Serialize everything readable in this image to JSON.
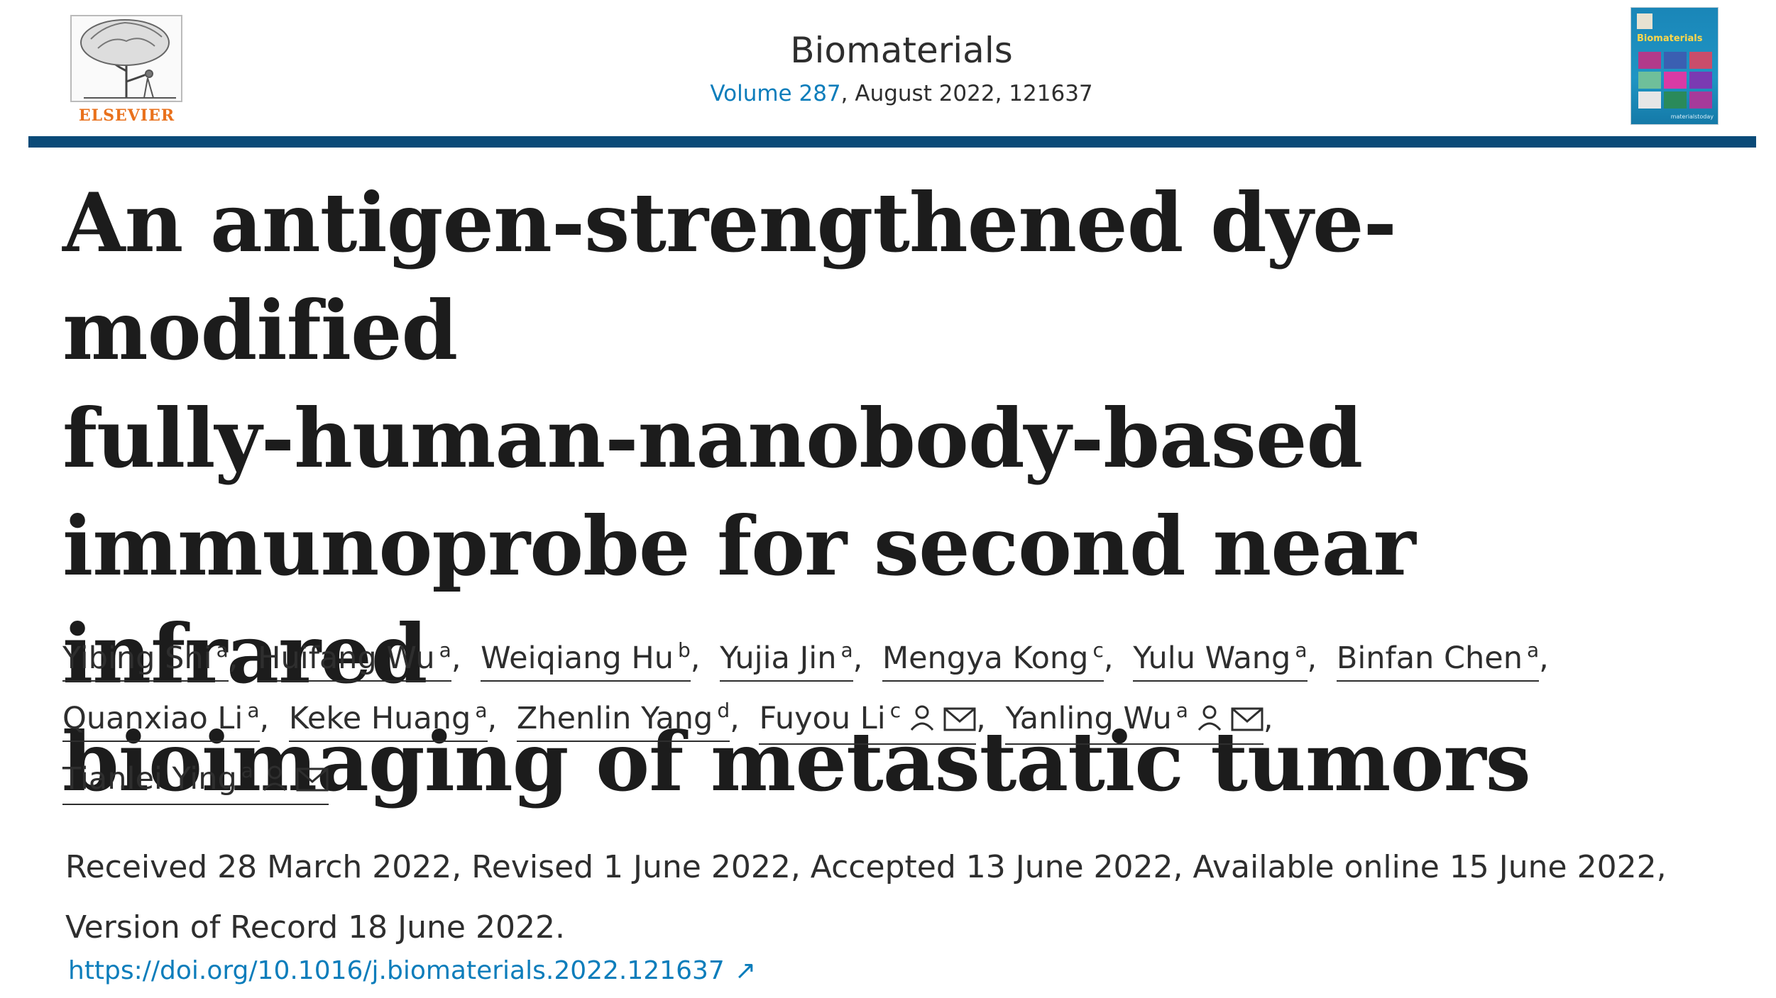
{
  "header": {
    "publisher": "ELSEVIER",
    "journal": "Biomaterials",
    "volume_link": "Volume 287",
    "volume_rest": ", August 2022, 121637",
    "cover_title": "Biomaterials",
    "cover_footer": "materialstoday"
  },
  "article": {
    "title_lines": [
      "An antigen-strengthened dye-modified",
      "fully-human-nanobody-based",
      "immunoprobe for second near infrared",
      "bioimaging of metastatic tumors"
    ]
  },
  "authors": [
    {
      "name": "Yibing Shi",
      "sup": "a"
    },
    {
      "name": "Huifang Wu",
      "sup": "a"
    },
    {
      "name": "Weiqiang Hu",
      "sup": "b"
    },
    {
      "name": "Yujia Jin",
      "sup": "a"
    },
    {
      "name": "Mengya Kong",
      "sup": "c"
    },
    {
      "name": "Yulu Wang",
      "sup": "a"
    },
    {
      "name": "Binfan Chen",
      "sup": "a"
    },
    {
      "name": "Quanxiao Li",
      "sup": "a"
    },
    {
      "name": "Keke Huang",
      "sup": "a"
    },
    {
      "name": "Zhenlin Yang",
      "sup": "d"
    },
    {
      "name": "Fuyou Li",
      "sup": "c",
      "corresponding": true
    },
    {
      "name": "Yanling Wu",
      "sup": "a",
      "corresponding": true
    },
    {
      "name": "Tianlei Ying",
      "sup": "a",
      "corresponding": true
    }
  ],
  "dates": {
    "line1": "Received 28 March 2022, Revised 1 June 2022, Accepted 13 June 2022, Available online 15 June 2022,",
    "line2": "Version of Record 18 June 2022."
  },
  "doi": {
    "text": "https://doi.org/10.1016/j.biomaterials.2022.121637",
    "arrow": "↗"
  },
  "colors": {
    "link": "#0c7dbb",
    "rule": "#0a4a78",
    "publisher": "#e9711c"
  },
  "icons": [
    "person-icon",
    "email-icon",
    "external-link-icon",
    "elsevier-tree-logo"
  ]
}
